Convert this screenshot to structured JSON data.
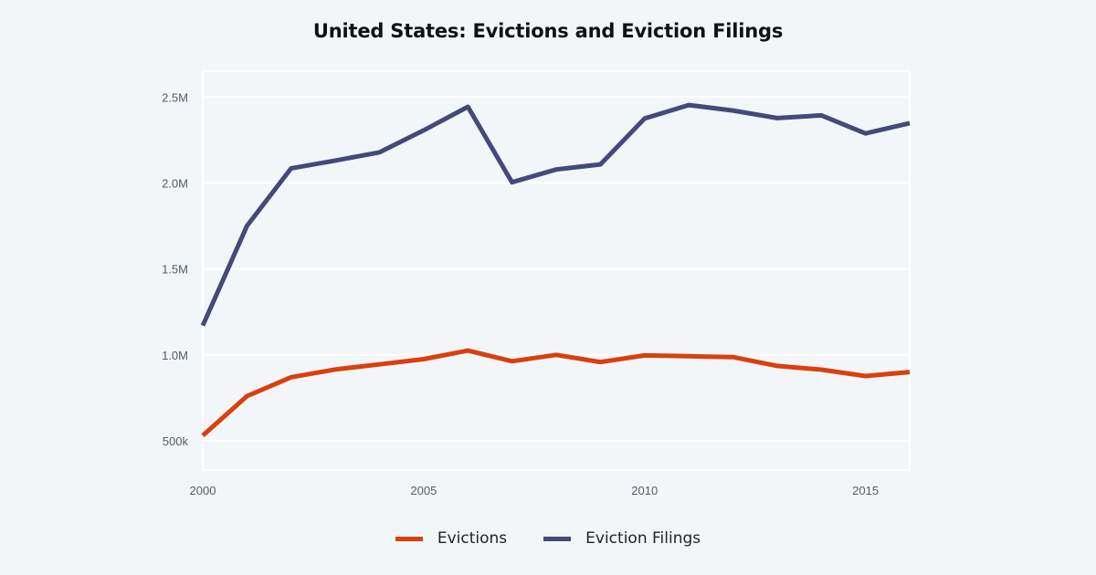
{
  "title": "United States: Evictions and Eviction Filings",
  "chart_data": {
    "type": "line",
    "title": "United States: Evictions and Eviction Filings",
    "xlabel": "",
    "ylabel": "",
    "x": [
      2000,
      2001,
      2002,
      2003,
      2004,
      2005,
      2006,
      2007,
      2008,
      2009,
      2010,
      2011,
      2012,
      2013,
      2014,
      2015,
      2016
    ],
    "xlim": [
      2000,
      2016
    ],
    "ylim": [
      330000,
      2650000
    ],
    "x_ticks": [
      2000,
      2005,
      2010,
      2015
    ],
    "x_tick_labels": [
      "2000",
      "2005",
      "2010",
      "2015"
    ],
    "y_ticks": [
      500000,
      1000000,
      1500000,
      2000000,
      2500000
    ],
    "y_tick_labels": [
      "500k",
      "1.0M",
      "1.5M",
      "2.0M",
      "2.5M"
    ],
    "grid": true,
    "legend_position": "bottom-center",
    "series": [
      {
        "name": "Evictions",
        "color": "#d9400e",
        "values": [
          530000,
          760000,
          870000,
          915000,
          945000,
          975000,
          1025000,
          963000,
          1000000,
          958000,
          997000,
          992000,
          987000,
          936000,
          914000,
          877000,
          900000
        ]
      },
      {
        "name": "Eviction Filings",
        "color": "#45497a",
        "values": [
          1170000,
          1750000,
          2085000,
          2130000,
          2178000,
          2306000,
          2443000,
          2004000,
          2078000,
          2108000,
          2375000,
          2453000,
          2421000,
          2377000,
          2393000,
          2288000,
          2348000
        ]
      }
    ]
  }
}
